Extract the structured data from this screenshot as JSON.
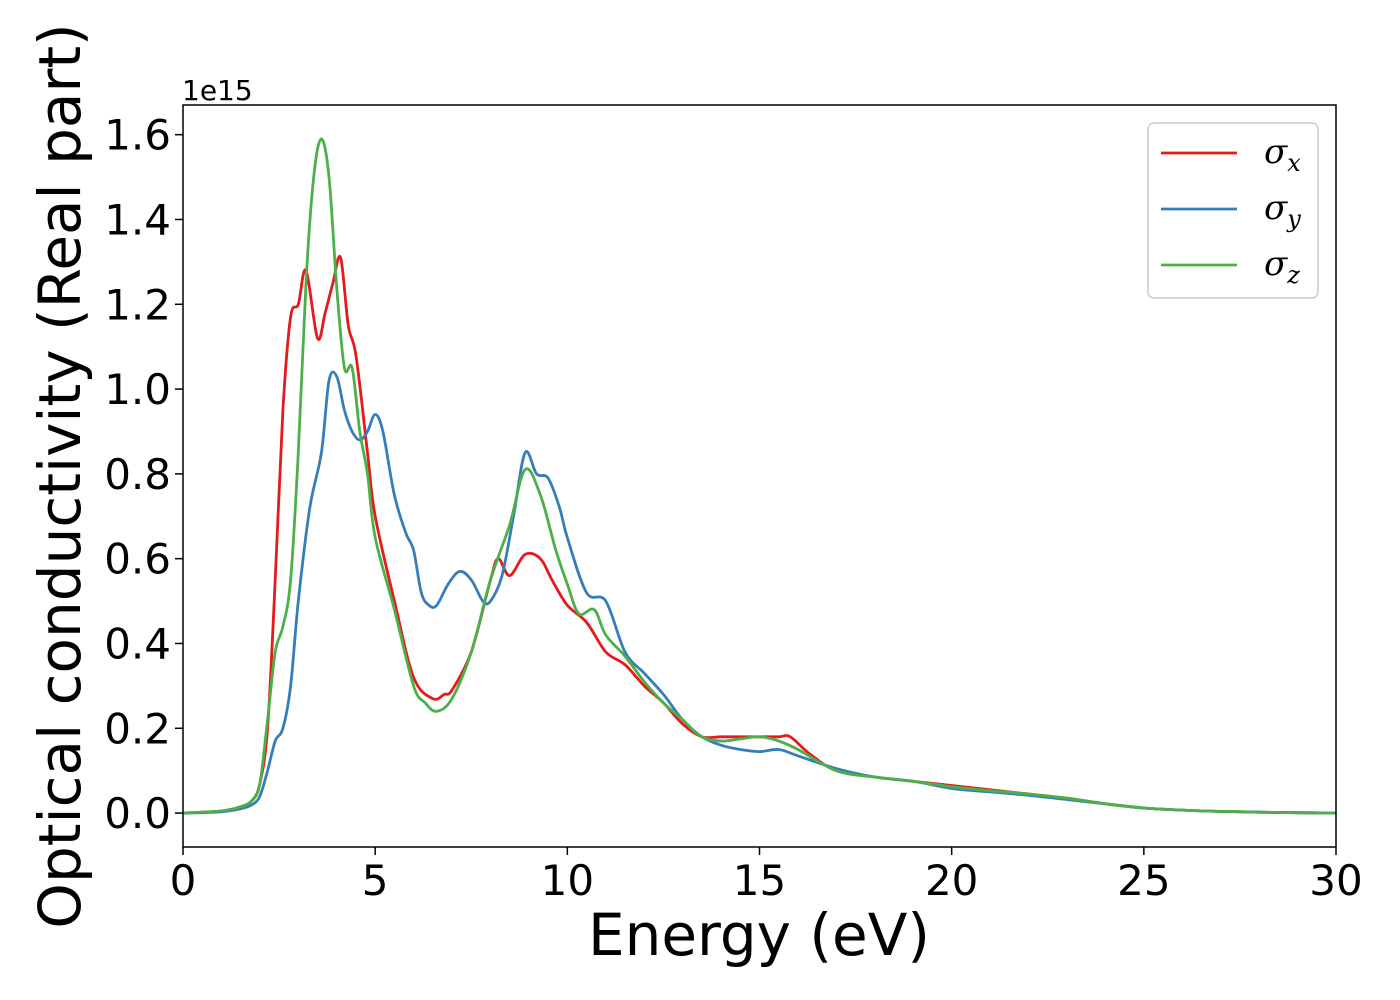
{
  "chart_data": {
    "type": "line",
    "xlabel": "Energy (eV)",
    "ylabel": "Optical conductivity (Real part)",
    "y_offset_label": "1e15",
    "xlim": [
      0,
      30
    ],
    "ylim": [
      -0.08,
      1.67
    ],
    "x_ticks": [
      0,
      5,
      10,
      15,
      20,
      25,
      30
    ],
    "x_tick_labels": [
      "0",
      "5",
      "10",
      "15",
      "20",
      "25",
      "30"
    ],
    "y_ticks": [
      0.0,
      0.2,
      0.4,
      0.6,
      0.8,
      1.0,
      1.2,
      1.4,
      1.6
    ],
    "y_tick_labels": [
      "0.0",
      "0.2",
      "0.4",
      "0.6",
      "0.8",
      "1.0",
      "1.2",
      "1.4",
      "1.6"
    ],
    "legend_position": "top-right",
    "grid": false,
    "series": [
      {
        "name": "σx",
        "symbol": "σ",
        "subscript": "x",
        "color": "#e41a1c",
        "x": [
          0,
          1,
          1.5,
          1.8,
          2.0,
          2.2,
          2.4,
          2.6,
          2.8,
          3.0,
          3.2,
          3.5,
          3.7,
          3.9,
          4.1,
          4.3,
          4.5,
          4.8,
          5.0,
          5.5,
          6.0,
          6.5,
          6.8,
          7.0,
          7.5,
          8.0,
          8.2,
          8.5,
          8.9,
          9.3,
          9.6,
          10.0,
          10.5,
          11.0,
          11.5,
          12.0,
          12.5,
          13.0,
          13.5,
          14.0,
          14.5,
          15.0,
          15.5,
          15.8,
          16.3,
          17.0,
          18.0,
          19.0,
          20.0,
          21.0,
          22.0,
          23.0,
          24.0,
          25.0,
          26.0,
          27.0,
          28.0,
          29.0,
          30.0
        ],
        "y": [
          0.0,
          0.005,
          0.015,
          0.03,
          0.07,
          0.2,
          0.55,
          0.95,
          1.17,
          1.2,
          1.28,
          1.12,
          1.18,
          1.25,
          1.31,
          1.15,
          1.08,
          0.85,
          0.7,
          0.5,
          0.32,
          0.27,
          0.28,
          0.29,
          0.38,
          0.55,
          0.6,
          0.56,
          0.61,
          0.6,
          0.55,
          0.49,
          0.45,
          0.38,
          0.35,
          0.3,
          0.26,
          0.21,
          0.18,
          0.18,
          0.18,
          0.18,
          0.18,
          0.18,
          0.14,
          0.1,
          0.085,
          0.075,
          0.065,
          0.055,
          0.045,
          0.035,
          0.022,
          0.012,
          0.007,
          0.004,
          0.002,
          0.001,
          0.0
        ]
      },
      {
        "name": "σy",
        "symbol": "σ",
        "subscript": "y",
        "color": "#377eb8",
        "x": [
          0,
          1,
          1.5,
          1.8,
          2.0,
          2.2,
          2.4,
          2.6,
          2.8,
          3.0,
          3.3,
          3.6,
          3.8,
          4.0,
          4.2,
          4.4,
          4.6,
          4.8,
          5.0,
          5.2,
          5.5,
          5.8,
          6.0,
          6.2,
          6.4,
          6.6,
          6.9,
          7.2,
          7.5,
          7.8,
          8.0,
          8.3,
          8.6,
          8.9,
          9.2,
          9.5,
          9.8,
          10.0,
          10.5,
          11.0,
          11.5,
          12.0,
          12.5,
          13.0,
          13.5,
          14.0,
          14.5,
          15.0,
          15.5,
          16.0,
          17.0,
          18.0,
          19.0,
          20.0,
          21.0,
          22.0,
          23.0,
          24.0,
          25.0,
          26.0,
          27.0,
          28.0,
          29.0,
          30.0
        ],
        "y": [
          0.0,
          0.003,
          0.01,
          0.02,
          0.04,
          0.1,
          0.17,
          0.2,
          0.3,
          0.5,
          0.72,
          0.85,
          1.02,
          1.03,
          0.95,
          0.9,
          0.88,
          0.9,
          0.94,
          0.9,
          0.75,
          0.66,
          0.62,
          0.52,
          0.49,
          0.49,
          0.54,
          0.57,
          0.55,
          0.5,
          0.5,
          0.56,
          0.7,
          0.85,
          0.8,
          0.79,
          0.72,
          0.65,
          0.52,
          0.5,
          0.38,
          0.33,
          0.28,
          0.22,
          0.18,
          0.16,
          0.15,
          0.145,
          0.15,
          0.135,
          0.105,
          0.085,
          0.075,
          0.058,
          0.05,
          0.042,
          0.032,
          0.022,
          0.012,
          0.007,
          0.004,
          0.002,
          0.001,
          0.0
        ]
      },
      {
        "name": "σz",
        "symbol": "σ",
        "subscript": "z",
        "color": "#4daf4a",
        "x": [
          0,
          1,
          1.5,
          1.8,
          2.0,
          2.2,
          2.4,
          2.6,
          2.8,
          3.0,
          3.2,
          3.4,
          3.6,
          3.8,
          4.0,
          4.2,
          4.4,
          4.6,
          4.8,
          5.0,
          5.5,
          6.0,
          6.3,
          6.6,
          7.0,
          7.5,
          8.0,
          8.5,
          8.9,
          9.3,
          9.7,
          10.0,
          10.3,
          10.7,
          11.0,
          11.5,
          12.0,
          12.5,
          13.0,
          13.5,
          14.0,
          14.5,
          15.0,
          15.5,
          16.0,
          17.0,
          18.0,
          19.0,
          20.0,
          21.0,
          22.0,
          23.0,
          24.0,
          25.0,
          26.0,
          27.0,
          28.0,
          29.0,
          30.0
        ],
        "y": [
          0.0,
          0.005,
          0.015,
          0.03,
          0.07,
          0.22,
          0.38,
          0.44,
          0.55,
          0.85,
          1.25,
          1.5,
          1.59,
          1.5,
          1.24,
          1.05,
          1.05,
          0.9,
          0.8,
          0.65,
          0.48,
          0.3,
          0.26,
          0.24,
          0.27,
          0.38,
          0.55,
          0.68,
          0.81,
          0.75,
          0.62,
          0.54,
          0.47,
          0.48,
          0.42,
          0.37,
          0.31,
          0.26,
          0.22,
          0.18,
          0.17,
          0.175,
          0.18,
          0.17,
          0.15,
          0.1,
          0.085,
          0.075,
          0.062,
          0.053,
          0.045,
          0.035,
          0.022,
          0.012,
          0.007,
          0.004,
          0.002,
          0.001,
          0.0
        ]
      }
    ]
  }
}
